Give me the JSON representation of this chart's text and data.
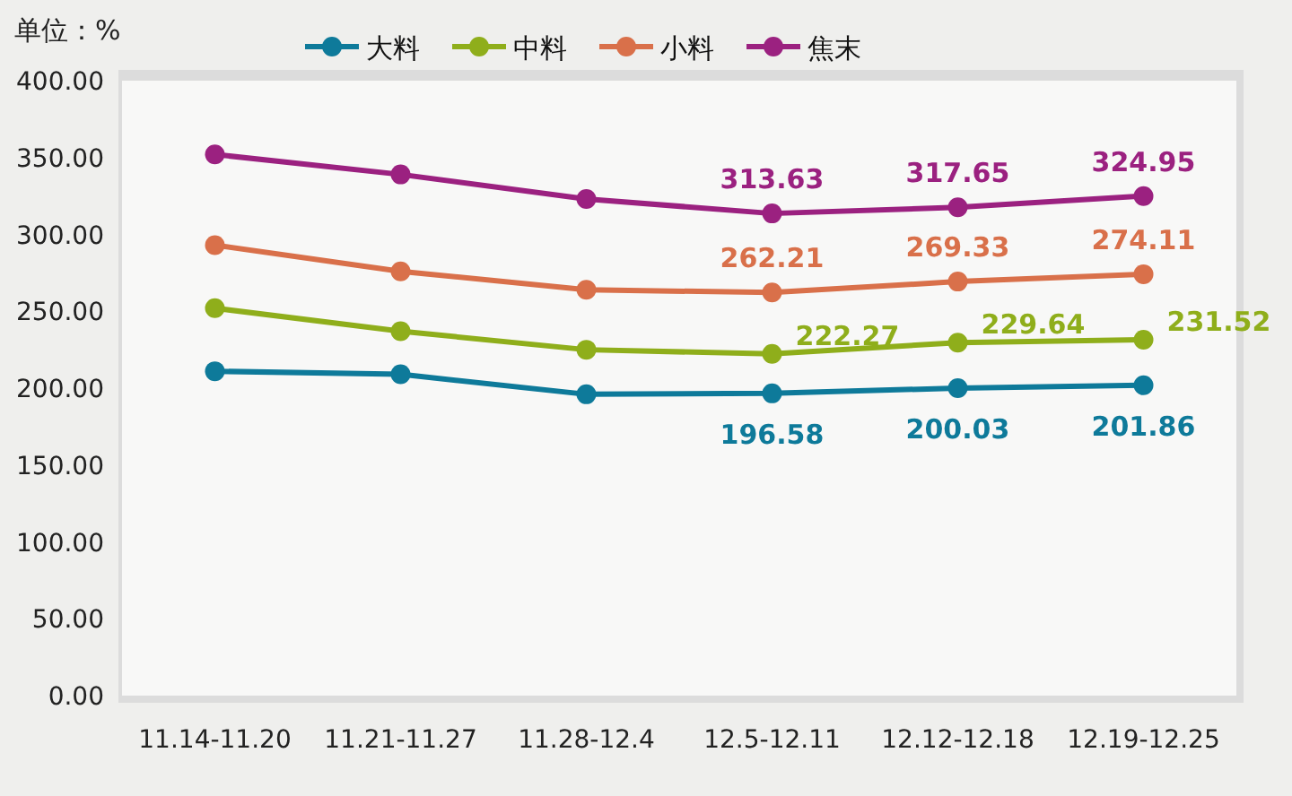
{
  "chart_data": {
    "type": "line",
    "ylabel": "单位：%",
    "categories": [
      "11.14-11.20",
      "11.21-11.27",
      "11.28-12.4",
      "12.5-12.11",
      "12.12-12.18",
      "12.19-12.25"
    ],
    "series": [
      {
        "name": "大料",
        "color": "#0e7a9a",
        "values": [
          211,
          209,
          196,
          196.58,
          200.03,
          201.86
        ],
        "value_labels": [
          null,
          null,
          null,
          "196.58",
          "200.03",
          "201.86"
        ]
      },
      {
        "name": "中料",
        "color": "#8fae1b",
        "values": [
          252,
          237,
          225,
          222.27,
          229.64,
          231.52
        ],
        "value_labels": [
          null,
          null,
          null,
          "222.27",
          "229.64",
          "231.52"
        ]
      },
      {
        "name": "小料",
        "color": "#d9704a",
        "values": [
          293,
          276,
          264,
          262.21,
          269.33,
          274.11
        ],
        "value_labels": [
          null,
          null,
          null,
          "262.21",
          "269.33",
          "274.11"
        ]
      },
      {
        "name": "焦末",
        "color": "#9b2180",
        "values": [
          352,
          339,
          323,
          313.63,
          317.65,
          324.95
        ],
        "value_labels": [
          null,
          null,
          null,
          "313.63",
          "317.65",
          "324.95"
        ]
      }
    ],
    "ylim": [
      0,
      400
    ],
    "yticks": [
      {
        "value": 0,
        "label": "0.00"
      },
      {
        "value": 50,
        "label": "50.00"
      },
      {
        "value": 100,
        "label": "100.00"
      },
      {
        "value": 150,
        "label": "150.00"
      },
      {
        "value": 200,
        "label": "200.00"
      },
      {
        "value": 250,
        "label": "250.00"
      },
      {
        "value": 300,
        "label": "300.00"
      },
      {
        "value": 350,
        "label": "350.00"
      },
      {
        "value": 400,
        "label": "400.00"
      }
    ],
    "marker": "circle",
    "legend": "top",
    "grid": false
  }
}
